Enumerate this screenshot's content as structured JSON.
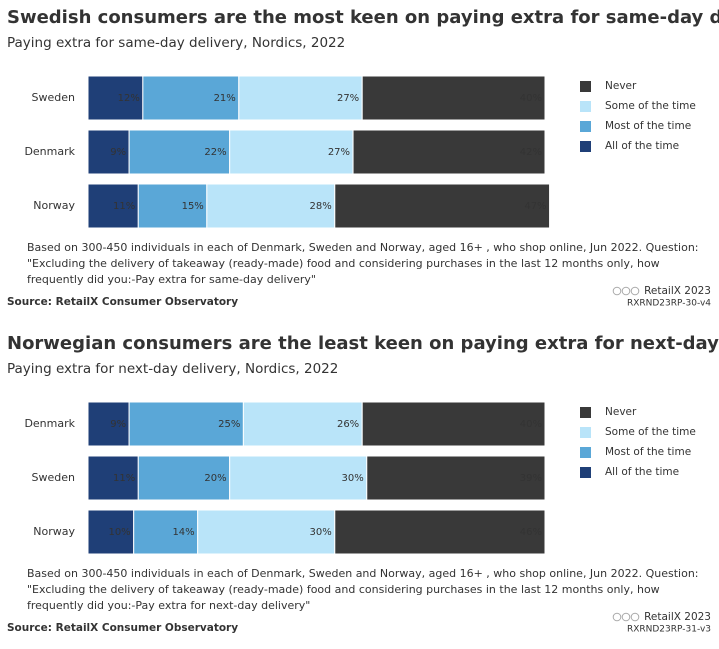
{
  "chart_data": [
    {
      "type": "bar",
      "title": "Swedish consumers are the most keen on paying extra for same-day delivery",
      "subtitle": "Paying extra for same-day delivery, Nordics, 2022",
      "categories": [
        "Sweden",
        "Denmark",
        "Norway"
      ],
      "series": [
        {
          "name": "All of the time",
          "color": "#1f3f77",
          "values": [
            12,
            9,
            11
          ],
          "value_labels": [
            "12%",
            "9%",
            "11%"
          ]
        },
        {
          "name": "Most of the time",
          "color": "#5aa7d7",
          "values": [
            21,
            22,
            15
          ],
          "value_labels": [
            "21%",
            "22%",
            "15%"
          ]
        },
        {
          "name": "Some of the time",
          "color": "#b9e4f9",
          "values": [
            27,
            27,
            28
          ],
          "value_labels": [
            "27%",
            "27%",
            "28%"
          ]
        },
        {
          "name": "Never",
          "color": "#393939",
          "values": [
            40,
            42,
            47
          ],
          "value_labels": [
            "40%",
            "42%",
            "47%"
          ]
        }
      ],
      "note": "Based on 300-450 individuals in each of Denmark, Sweden and Norway, aged 16+ , who shop online, Jun 2022. Question: \"Excluding the delivery of takeaway (ready-made) food and considering purchases in the last 12 months only, how frequently did you:-Pay extra for same-day delivery\"",
      "source": "Source: RetailX Consumer Observatory",
      "credit": "RetailX 2023",
      "code": "RXRND23RP-30-v4"
    },
    {
      "type": "bar",
      "title": "Norwegian consumers are the least keen on paying extra for next-day delivery",
      "subtitle": "Paying extra for next-day delivery, Nordics, 2022",
      "categories": [
        "Denmark",
        "Sweden",
        "Norway"
      ],
      "series": [
        {
          "name": "All of the time",
          "color": "#1f3f77",
          "values": [
            9,
            11,
            10
          ],
          "value_labels": [
            "9%",
            "11%",
            "10%"
          ]
        },
        {
          "name": "Most of the time",
          "color": "#5aa7d7",
          "values": [
            25,
            20,
            14
          ],
          "value_labels": [
            "25%",
            "20%",
            "14%"
          ]
        },
        {
          "name": "Some of the time",
          "color": "#b9e4f9",
          "values": [
            26,
            30,
            30
          ],
          "value_labels": [
            "26%",
            "30%",
            "30%"
          ]
        },
        {
          "name": "Never",
          "color": "#393939",
          "values": [
            40,
            39,
            46
          ],
          "value_labels": [
            "40%",
            "39%",
            "46%"
          ]
        }
      ],
      "note": "Based on 300-450 individuals in each of Denmark, Sweden and Norway, aged 16+ , who shop online, Jun 2022. Question: \"Excluding the delivery of takeaway (ready-made) food and considering purchases in the last 12 months only, how frequently did you:-Pay extra for next-day delivery\"",
      "source": "Source: RetailX Consumer Observatory",
      "credit": "RetailX 2023",
      "code": "RXRND23RP-31-v3"
    }
  ]
}
